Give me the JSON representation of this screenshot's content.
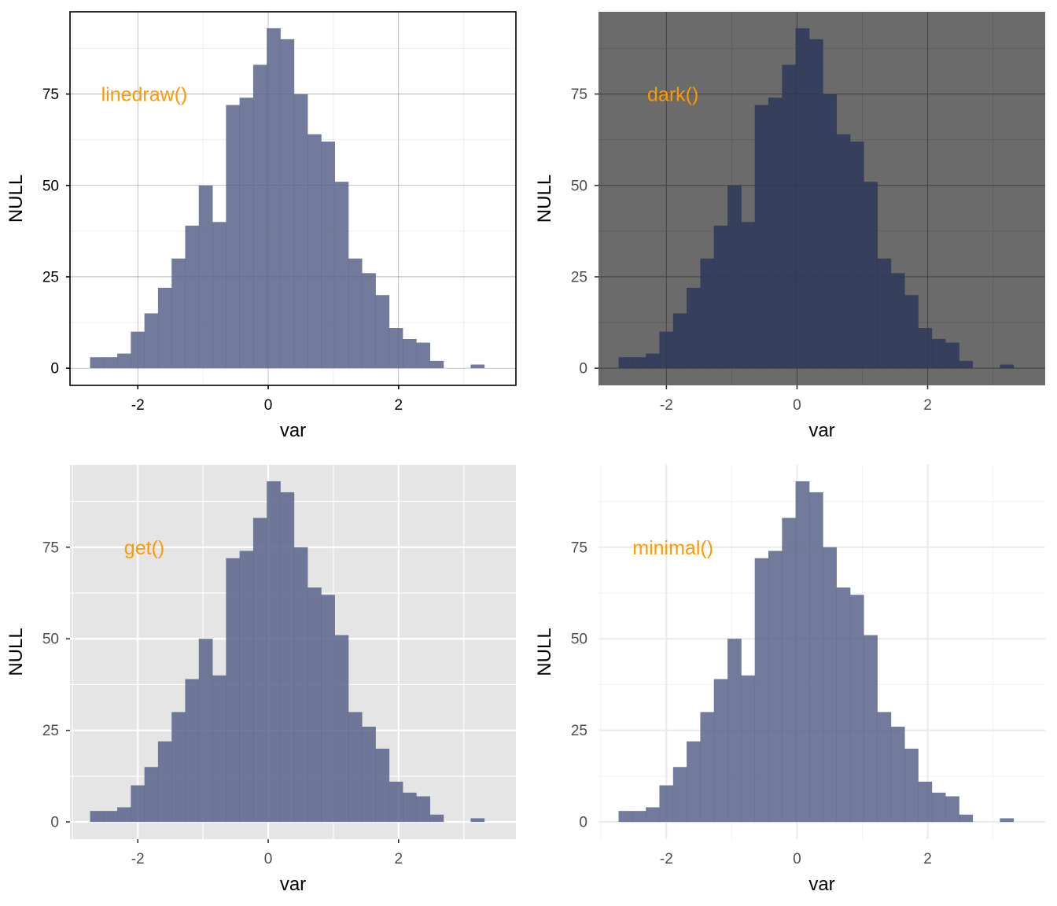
{
  "figure": {
    "ncols": 2,
    "nrows": 2
  },
  "bin_width": 0.2085,
  "chart_data": [
    {
      "type": "bar",
      "theme": "linedraw",
      "annotation": {
        "text": "linedraw()",
        "x": -1.9,
        "y": 75,
        "color": "#FF9900"
      },
      "xlabel": "var",
      "ylabel": "NULL",
      "xlim": [
        -3.04,
        3.8
      ],
      "ylim": [
        -4.7,
        97.5
      ],
      "x_ticks": [
        -2,
        0,
        2
      ],
      "x_tick_labels": [
        "-2",
        "0",
        "2"
      ],
      "y_ticks": [
        0,
        25,
        50,
        75
      ],
      "y_tick_labels": [
        "0",
        "25",
        "50",
        "75"
      ],
      "grid": true,
      "legend": "none",
      "panel_bg": "#FFFFFF",
      "bar_color": "#59648A",
      "bar_opacity": 0.85,
      "bins": [
        {
          "x": -2.628,
          "count": 3
        },
        {
          "x": -2.42,
          "count": 3
        },
        {
          "x": -2.211,
          "count": 4
        },
        {
          "x": -2.003,
          "count": 10
        },
        {
          "x": -1.794,
          "count": 15
        },
        {
          "x": -1.586,
          "count": 22
        },
        {
          "x": -1.377,
          "count": 30
        },
        {
          "x": -1.169,
          "count": 39
        },
        {
          "x": -0.96,
          "count": 50
        },
        {
          "x": -0.752,
          "count": 40
        },
        {
          "x": -0.543,
          "count": 72
        },
        {
          "x": -0.335,
          "count": 74
        },
        {
          "x": -0.126,
          "count": 83
        },
        {
          "x": 0.082,
          "count": 93
        },
        {
          "x": 0.291,
          "count": 90
        },
        {
          "x": 0.499,
          "count": 75
        },
        {
          "x": 0.708,
          "count": 64
        },
        {
          "x": 0.916,
          "count": 62
        },
        {
          "x": 1.125,
          "count": 51
        },
        {
          "x": 1.333,
          "count": 30
        },
        {
          "x": 1.542,
          "count": 26
        },
        {
          "x": 1.75,
          "count": 20
        },
        {
          "x": 1.959,
          "count": 11
        },
        {
          "x": 2.167,
          "count": 8
        },
        {
          "x": 2.376,
          "count": 7
        },
        {
          "x": 2.584,
          "count": 2
        },
        {
          "x": 2.793,
          "count": 0
        },
        {
          "x": 3.001,
          "count": 0
        },
        {
          "x": 3.21,
          "count": 1
        }
      ]
    },
    {
      "type": "bar",
      "theme": "dark",
      "annotation": {
        "text": "dark()",
        "x": -1.9,
        "y": 75,
        "color": "#FF9900"
      },
      "xlabel": "var",
      "ylabel": "NULL",
      "xlim": [
        -3.04,
        3.8
      ],
      "ylim": [
        -4.7,
        97.5
      ],
      "x_ticks": [
        -2,
        0,
        2
      ],
      "x_tick_labels": [
        "-2",
        "0",
        "2"
      ],
      "y_ticks": [
        0,
        25,
        50,
        75
      ],
      "y_tick_labels": [
        "0",
        "25",
        "50",
        "75"
      ],
      "grid": true,
      "legend": "none",
      "panel_bg": "#6B6B6B",
      "bar_color": "#2D3859",
      "bar_opacity": 0.85,
      "bins": "same-as-panel-1"
    },
    {
      "type": "bar",
      "theme": "get",
      "annotation": {
        "text": "get()",
        "x": -1.9,
        "y": 75,
        "color": "#FF9900"
      },
      "xlabel": "var",
      "ylabel": "NULL",
      "xlim": [
        -3.04,
        3.8
      ],
      "ylim": [
        -4.7,
        97.5
      ],
      "x_ticks": [
        -2,
        0,
        2
      ],
      "x_tick_labels": [
        "-2",
        "0",
        "2"
      ],
      "y_ticks": [
        0,
        25,
        50,
        75
      ],
      "y_tick_labels": [
        "0",
        "25",
        "50",
        "75"
      ],
      "grid": true,
      "legend": "none",
      "panel_bg": "#E5E5E5",
      "bar_color": "#59648A",
      "bar_opacity": 0.85,
      "bins": "same-as-panel-1"
    },
    {
      "type": "bar",
      "theme": "minimal",
      "annotation": {
        "text": "minimal()",
        "x": -1.9,
        "y": 75,
        "color": "#FF9900"
      },
      "xlabel": "var",
      "ylabel": "NULL",
      "xlim": [
        -3.04,
        3.8
      ],
      "ylim": [
        -4.7,
        97.5
      ],
      "x_ticks": [
        -2,
        0,
        2
      ],
      "x_tick_labels": [
        "-2",
        "0",
        "2"
      ],
      "y_ticks": [
        0,
        25,
        50,
        75
      ],
      "y_tick_labels": [
        "0",
        "25",
        "50",
        "75"
      ],
      "grid": true,
      "legend": "none",
      "panel_bg": "#FFFFFF",
      "bar_color": "#59648A",
      "bar_opacity": 0.85,
      "bins": "same-as-panel-1"
    }
  ]
}
